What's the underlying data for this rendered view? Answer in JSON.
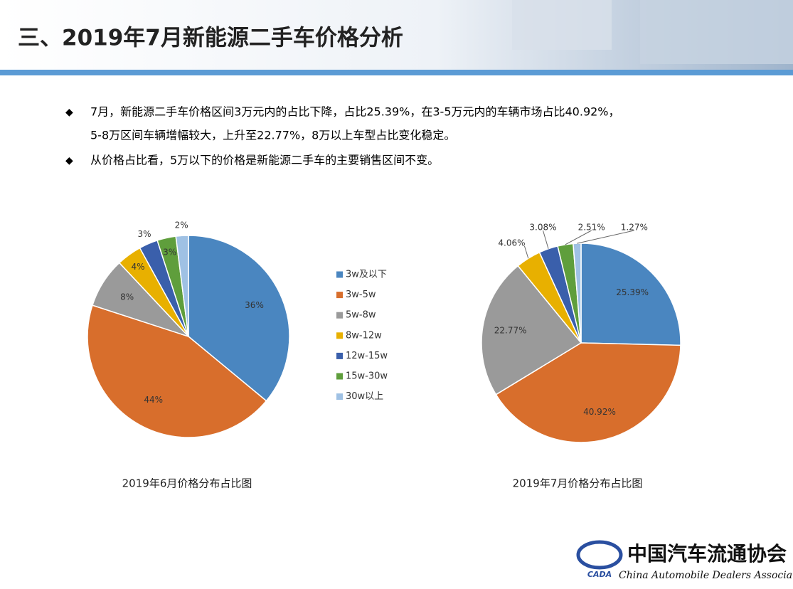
{
  "header": {
    "title": "三、2019年7月新能源二手车价格分析"
  },
  "bullets": [
    "7月，新能源二手车价格区间3万元内的占比下降，占比25.39%，在3-5万元内的车辆市场占比40.92%，",
    "5-8万区间车辆增幅较大，上升至22.77%，8万以上车型占比变化稳定。",
    "从价格占比看，5万以下的价格是新能源二手车的主要销售区间不变。"
  ],
  "legend": {
    "categories": [
      "3w及以下",
      "3w-5w",
      "5w-8w",
      "8w-12w",
      "12w-15w",
      "15w-30w",
      "30w以上"
    ],
    "colors": [
      "#4a86c0",
      "#d86e2c",
      "#9a9a9a",
      "#e8b000",
      "#3a5fab",
      "#5f9e3c",
      "#9fc1e4"
    ]
  },
  "chart_data": [
    {
      "type": "pie",
      "title": "2019年6月价格分布占比图",
      "values": [
        36,
        44,
        8,
        4,
        3,
        3,
        2
      ],
      "value_labels": [
        "36%",
        "44%",
        "8%",
        "4%",
        "3%",
        "3%",
        "2%"
      ]
    },
    {
      "type": "pie",
      "title": "2019年7月价格分布占比图",
      "values": [
        25.39,
        40.92,
        22.77,
        4.06,
        3.08,
        2.51,
        1.27
      ],
      "value_labels": [
        "25.39%",
        "40.92%",
        "22.77%",
        "4.06%",
        "3.08%",
        "2.51%",
        "1.27%"
      ]
    }
  ],
  "logo": {
    "mark": "CADA",
    "name": "中国汽车流通协会",
    "english": "China Automobile Dealers Association"
  }
}
